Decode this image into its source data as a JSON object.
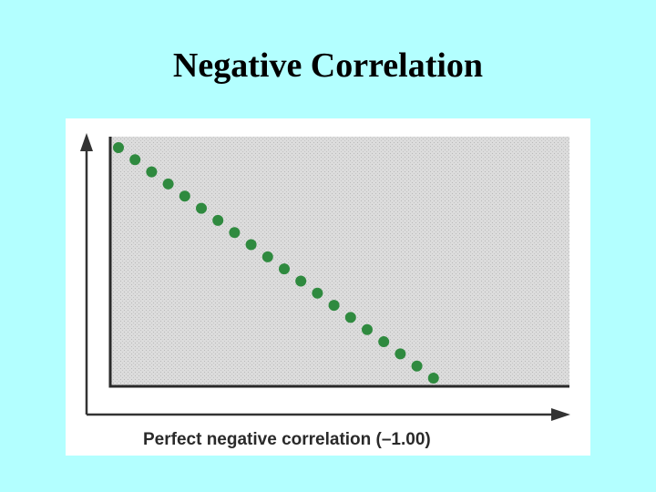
{
  "chart_data": {
    "type": "scatter",
    "title": "Negative Correlation",
    "xlabel": "Perfect negative correlation (–1.00)",
    "xlim": [
      0.45,
      28.2
    ],
    "ylim": [
      0.25,
      20.9
    ],
    "series": [
      {
        "color": "#2f8a3f",
        "x": [
          1,
          2,
          3,
          4,
          5,
          6,
          7,
          8,
          9,
          10,
          11,
          12,
          13,
          14,
          15,
          16,
          17,
          18,
          19,
          20
        ],
        "values": [
          20,
          19,
          18,
          17,
          16,
          15,
          14,
          13,
          12,
          11,
          10,
          9,
          8,
          7,
          6,
          5,
          4,
          3,
          2,
          1
        ]
      }
    ]
  }
}
